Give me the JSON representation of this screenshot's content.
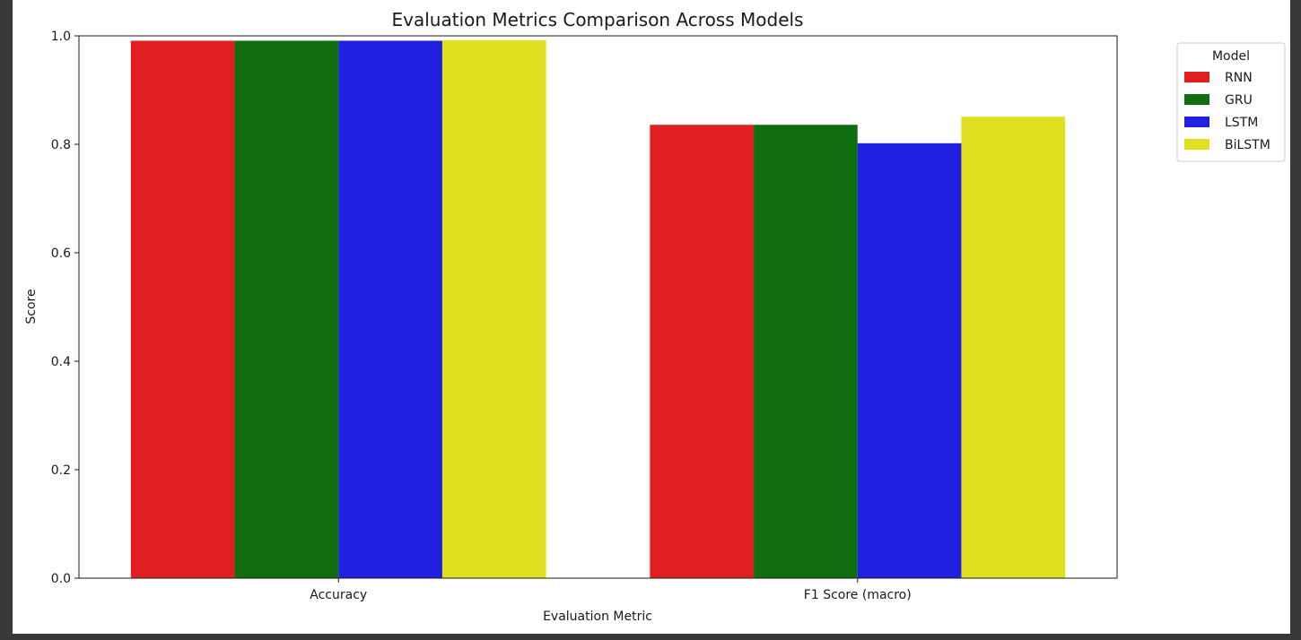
{
  "chart_data": {
    "type": "bar",
    "title": "Evaluation Metrics Comparison Across Models",
    "xlabel": "Evaluation Metric",
    "ylabel": "Score",
    "categories": [
      "Accuracy",
      "F1 Score (macro)"
    ],
    "ylim": [
      0,
      1.0
    ],
    "yticks": [
      "0.0",
      "0.2",
      "0.4",
      "0.6",
      "0.8",
      "1.0"
    ],
    "grid": false,
    "legend": {
      "title": "Model",
      "placement": "outside-top-right"
    },
    "series": [
      {
        "name": "RNN",
        "color": "#e02020",
        "values": [
          0.991,
          0.836
        ]
      },
      {
        "name": "GRU",
        "color": "#106e10",
        "values": [
          0.991,
          0.836
        ]
      },
      {
        "name": "LSTM",
        "color": "#1f20e0",
        "values": [
          0.991,
          0.802
        ]
      },
      {
        "name": "BiLSTM",
        "color": "#e0e020",
        "values": [
          0.992,
          0.851
        ]
      }
    ]
  }
}
